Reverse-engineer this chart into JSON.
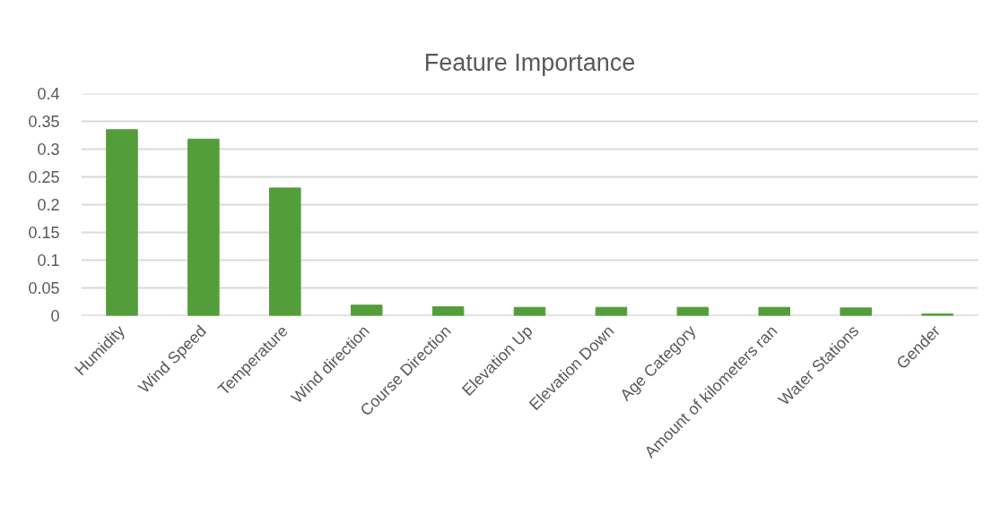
{
  "chart_data": {
    "type": "bar",
    "title": "Feature Importance",
    "categories": [
      "Humidity",
      "Wind Speed",
      "Temperature",
      "Wind direction",
      "Course Direction",
      "Elevation Up",
      "Elevation Down",
      "Age Category",
      "Amount of kilometers ran",
      "Water Stations",
      "Gender"
    ],
    "values": [
      0.335,
      0.318,
      0.23,
      0.019,
      0.016,
      0.015,
      0.015,
      0.015,
      0.015,
      0.014,
      0.003
    ],
    "color": "#539e3a",
    "ylim": [
      0,
      0.4
    ],
    "yticks": [
      0,
      0.05,
      0.1,
      0.15,
      0.2,
      0.25,
      0.3,
      0.35,
      0.4
    ],
    "grid": "y"
  }
}
